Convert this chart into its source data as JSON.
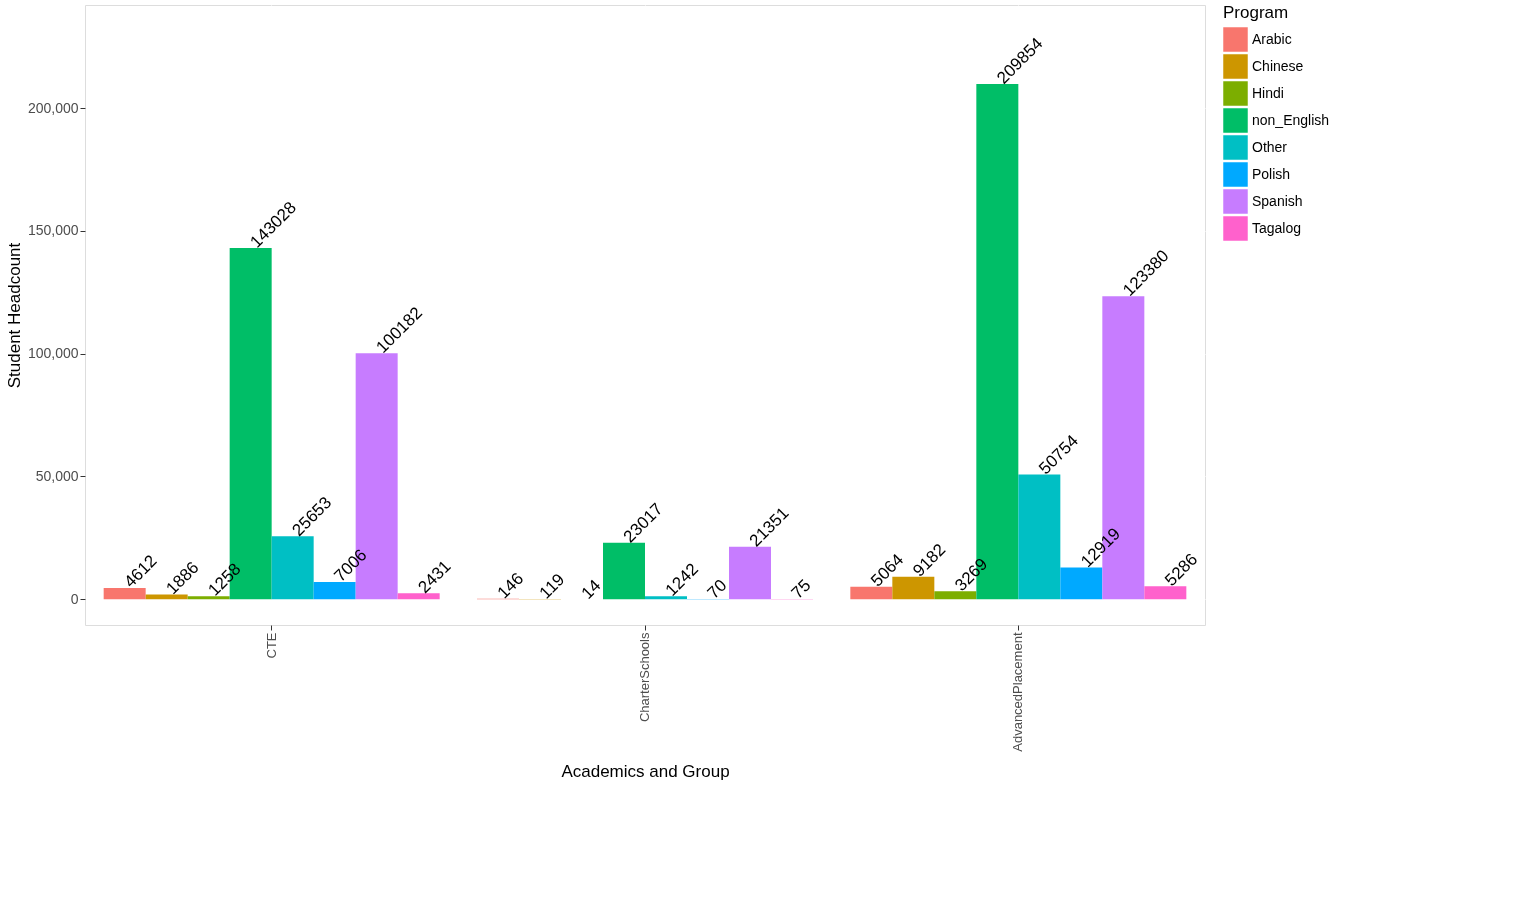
{
  "chart_data": {
    "type": "bar",
    "xlabel": "Academics and Group",
    "ylabel": "Student Headcount",
    "legend_title": "Program",
    "categories": [
      "CTE",
      "CharterSchools",
      "AdvancedPlacement"
    ],
    "series": [
      {
        "name": "Arabic",
        "color": "#f8766d",
        "values": [
          4612,
          146,
          5064
        ]
      },
      {
        "name": "Chinese",
        "color": "#cd9600",
        "values": [
          1886,
          119,
          9182
        ]
      },
      {
        "name": "Hindi",
        "color": "#7cae00",
        "values": [
          1258,
          14,
          3269
        ]
      },
      {
        "name": "non_English",
        "color": "#00be67",
        "values": [
          143028,
          23017,
          209854
        ]
      },
      {
        "name": "Other",
        "color": "#00bfc4",
        "values": [
          25653,
          1242,
          50754
        ]
      },
      {
        "name": "Polish",
        "color": "#00a9ff",
        "values": [
          7006,
          70,
          12919
        ]
      },
      {
        "name": "Spanish",
        "color": "#c77cff",
        "values": [
          100182,
          21351,
          123380
        ]
      },
      {
        "name": "Tagalog",
        "color": "#ff61cc",
        "values": [
          2431,
          75,
          5286
        ]
      }
    ],
    "ylim": [
      -10500,
      242000
    ],
    "yticks": [
      {
        "value": 0,
        "label": "0"
      },
      {
        "value": 50000,
        "label": "50,000"
      },
      {
        "value": 100000,
        "label": "100,000"
      },
      {
        "value": 150000,
        "label": "150,000"
      },
      {
        "value": 200000,
        "label": "200,000"
      }
    ],
    "data_labels": true,
    "grid": true,
    "legend": "right"
  }
}
